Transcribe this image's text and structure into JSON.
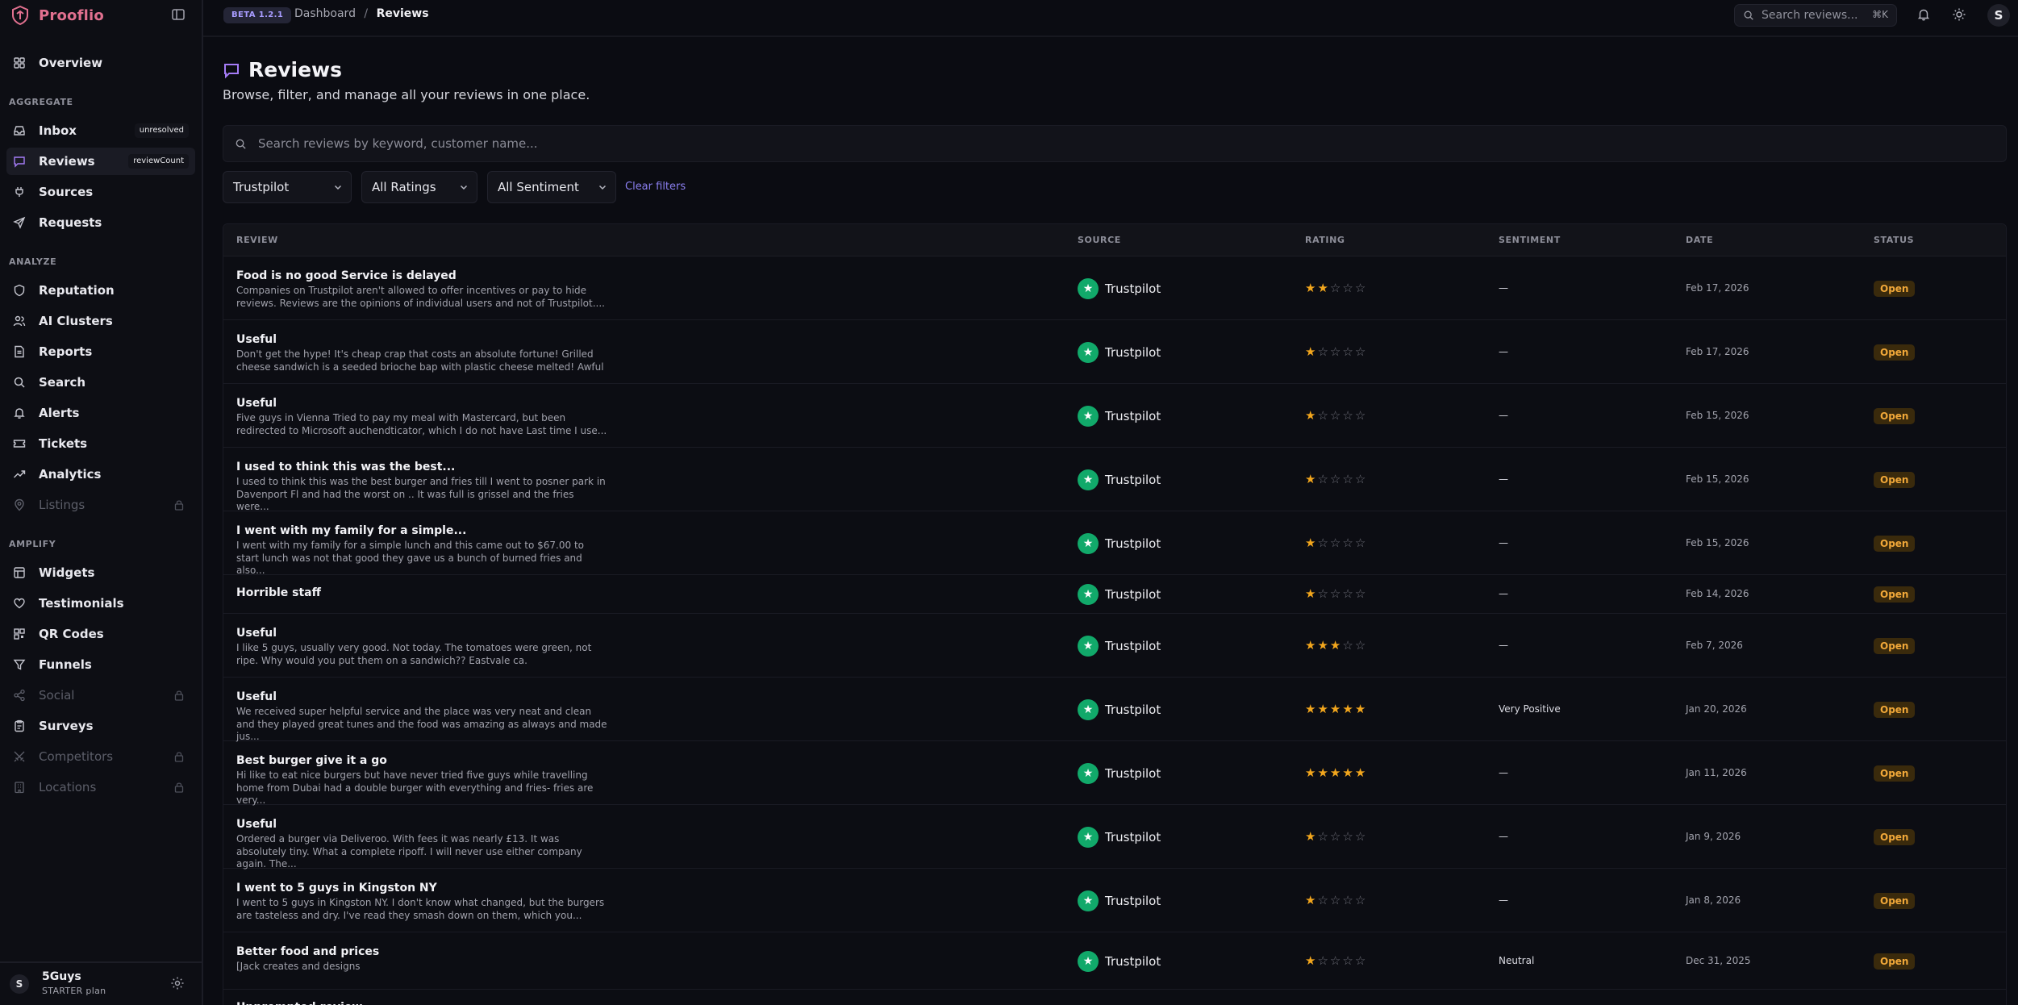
{
  "app": {
    "name": "Prooflio",
    "version_badge": "BETA 1.2.1"
  },
  "breadcrumb": {
    "root": "Dashboard",
    "separator": "/",
    "current": "Reviews"
  },
  "top_search": {
    "placeholder": "Search reviews...",
    "shortcut": "⌘K"
  },
  "user": {
    "initial": "S"
  },
  "sidebar": {
    "overview": "Overview",
    "sections": {
      "aggregate": "AGGREGATE",
      "analyze": "ANALYZE",
      "amplify": "AMPLIFY"
    },
    "items": {
      "inbox": {
        "label": "Inbox",
        "badge": "unresolved"
      },
      "reviews": {
        "label": "Reviews",
        "badge": "reviewCount"
      },
      "sources": {
        "label": "Sources"
      },
      "requests": {
        "label": "Requests"
      },
      "reputation": {
        "label": "Reputation"
      },
      "ai_clusters": {
        "label": "AI Clusters"
      },
      "reports": {
        "label": "Reports"
      },
      "search": {
        "label": "Search"
      },
      "alerts": {
        "label": "Alerts"
      },
      "tickets": {
        "label": "Tickets"
      },
      "analytics": {
        "label": "Analytics"
      },
      "listings": {
        "label": "Listings"
      },
      "widgets": {
        "label": "Widgets"
      },
      "testimonials": {
        "label": "Testimonials"
      },
      "qr_codes": {
        "label": "QR Codes"
      },
      "funnels": {
        "label": "Funnels"
      },
      "social": {
        "label": "Social"
      },
      "surveys": {
        "label": "Surveys"
      },
      "competitors": {
        "label": "Competitors"
      },
      "locations": {
        "label": "Locations"
      }
    },
    "footer": {
      "initial": "S",
      "org": "5Guys",
      "plan": "STARTER plan"
    }
  },
  "page": {
    "title": "Reviews",
    "subtitle": "Browse, filter, and manage all your reviews in one place.",
    "search_placeholder": "Search reviews by keyword, customer name...",
    "filters": {
      "source": "Trustpilot",
      "rating": "All Ratings",
      "sentiment": "All Sentiment",
      "clear": "Clear filters"
    }
  },
  "table": {
    "headers": {
      "review": "REVIEW",
      "source": "SOURCE",
      "rating": "RATING",
      "sentiment": "SENTIMENT",
      "date": "DATE",
      "status": "STATUS"
    },
    "rows": [
      {
        "title": "Food is no good Service is delayed",
        "body": "Companies on Trustpilot aren't allowed to offer incentives or pay to hide reviews. Reviews are the opinions of individual users and not of Trustpilot....",
        "source": "Trustpilot",
        "rating": 2,
        "sentiment": "—",
        "date": "Feb 17, 2026",
        "status": "Open"
      },
      {
        "title": "Useful",
        "body": "Don't get the hype! It's cheap crap that costs an absolute fortune! Grilled cheese sandwich is a seeded brioche bap with plastic cheese melted! Awful",
        "source": "Trustpilot",
        "rating": 1,
        "sentiment": "—",
        "date": "Feb 17, 2026",
        "status": "Open"
      },
      {
        "title": "Useful",
        "body": "Five guys in Vienna Tried to pay my meal with Mastercard, but been redirected to Microsoft auchendticator, which I do not have Last time I use...",
        "source": "Trustpilot",
        "rating": 1,
        "sentiment": "—",
        "date": "Feb 15, 2026",
        "status": "Open"
      },
      {
        "title": "I used to think this was the best...",
        "body": "I used to think this was the best burger and fries till I went to posner park in Davenport Fl and had the worst on .. It was full is grissel and the fries were...",
        "source": "Trustpilot",
        "rating": 1,
        "sentiment": "—",
        "date": "Feb 15, 2026",
        "status": "Open"
      },
      {
        "title": "I went with my family for a simple...",
        "body": "I went with my family for a simple lunch and this came out to $67.00 to start lunch was not that good they gave us a bunch of burned fries and also...",
        "source": "Trustpilot",
        "rating": 1,
        "sentiment": "—",
        "date": "Feb 15, 2026",
        "status": "Open"
      },
      {
        "title": "Horrible staff",
        "body": "",
        "source": "Trustpilot",
        "rating": 1,
        "sentiment": "—",
        "date": "Feb 14, 2026",
        "status": "Open"
      },
      {
        "title": "Useful",
        "body": "I like 5 guys, usually very good. Not today. The tomatoes were green, not ripe. Why would you put them on a sandwich?? Eastvale ca.",
        "source": "Trustpilot",
        "rating": 3,
        "sentiment": "—",
        "date": "Feb 7, 2026",
        "status": "Open"
      },
      {
        "title": "Useful",
        "body": "We received super helpful service and the place was very neat and clean and they played great tunes and the food was amazing as always and made jus...",
        "source": "Trustpilot",
        "rating": 5,
        "sentiment": "Very Positive",
        "date": "Jan 20, 2026",
        "status": "Open"
      },
      {
        "title": "Best burger give it a go",
        "body": "Hi like to eat nice burgers but have never tried five guys while travelling home from Dubai had a double burger with everything and fries- fries are very...",
        "source": "Trustpilot",
        "rating": 5,
        "sentiment": "—",
        "date": "Jan 11, 2026",
        "status": "Open"
      },
      {
        "title": "Useful",
        "body": "Ordered a burger via Deliveroo. With fees it was nearly £13. It was absolutely tiny. What a complete ripoff. I will never use either company again. The...",
        "source": "Trustpilot",
        "rating": 1,
        "sentiment": "—",
        "date": "Jan 9, 2026",
        "status": "Open"
      },
      {
        "title": "I went to 5 guys in Kingston NY",
        "body": "I went to 5 guys in Kingston NY. I don't know what changed, but the burgers are tasteless and dry. I've read they smash down on them, which you...",
        "source": "Trustpilot",
        "rating": 1,
        "sentiment": "—",
        "date": "Jan 8, 2026",
        "status": "Open"
      },
      {
        "title": "Better food and prices",
        "body": "[Jack creates and designs",
        "source": "Trustpilot",
        "rating": 1,
        "sentiment": "Neutral",
        "date": "Dec 31, 2025",
        "status": "Open"
      },
      {
        "title": "Unprompted review",
        "body": "",
        "source": "",
        "rating": 0,
        "sentiment": "",
        "date": "",
        "status": ""
      }
    ]
  },
  "colors": {
    "accent": "#a57cf7",
    "brand": "#e1708f",
    "trustpilot": "#11a96a",
    "star": "#f2a61d",
    "status_open": "#f1a839"
  }
}
